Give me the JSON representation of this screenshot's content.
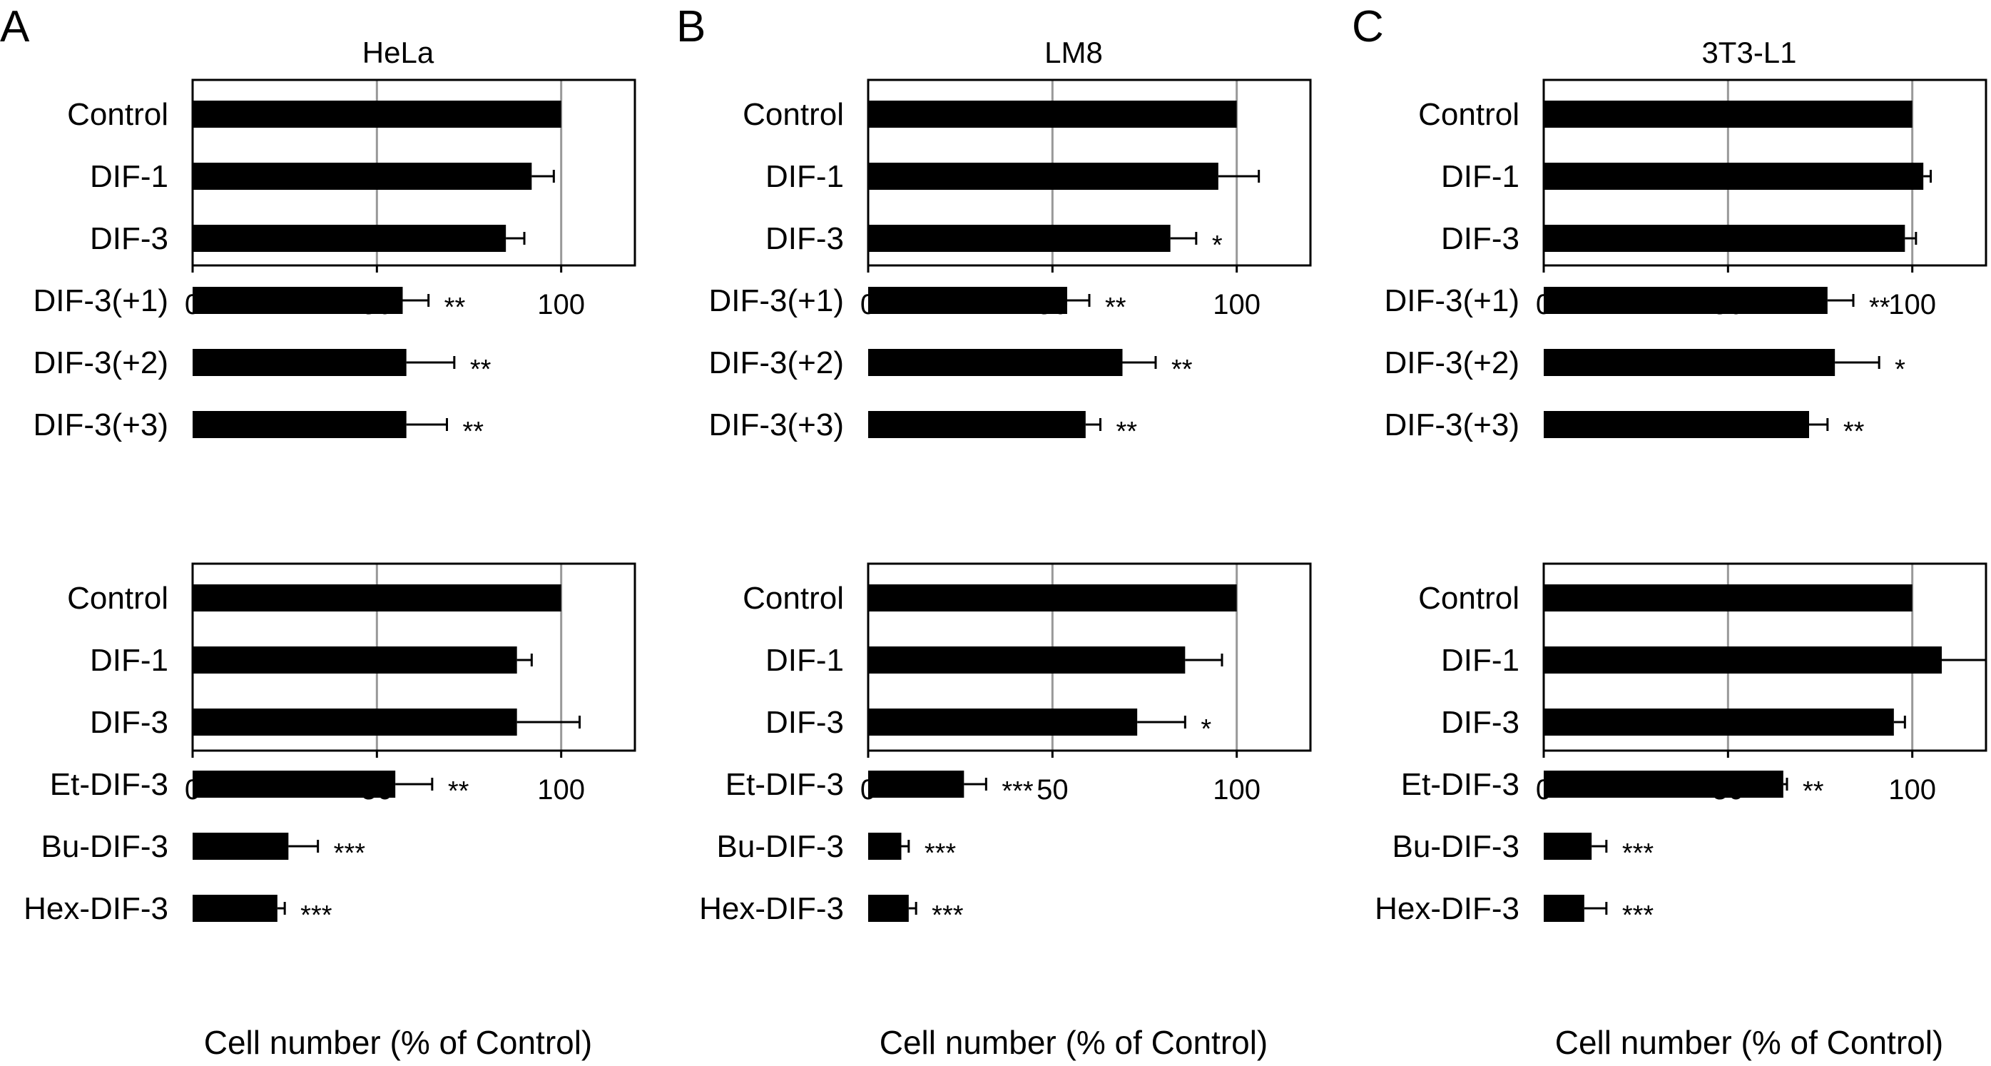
{
  "figure": {
    "panel_letters": [
      "A",
      "B",
      "C"
    ],
    "cell_lines": [
      "HeLa",
      "LM8",
      "3T3-L1"
    ],
    "xlabel": "Cell number (% of Control)"
  },
  "chart_data": [
    {
      "type": "bar",
      "orientation": "horizontal",
      "panel": "A",
      "title": "HeLa",
      "categories": [
        "Control",
        "DIF-1",
        "DIF-3",
        "DIF-3(+1)",
        "DIF-3(+2)",
        "DIF-3(+3)"
      ],
      "values": [
        100,
        92,
        85,
        57,
        58,
        58
      ],
      "errors": [
        0,
        6,
        5,
        7,
        13,
        11
      ],
      "significance": [
        "",
        "",
        "",
        "**",
        "**",
        "**"
      ],
      "xlim": [
        0,
        120
      ],
      "xticks": [
        0,
        50,
        100
      ],
      "xlabel": "",
      "grid": true
    },
    {
      "type": "bar",
      "orientation": "horizontal",
      "panel": "B",
      "title": "LM8",
      "categories": [
        "Control",
        "DIF-1",
        "DIF-3",
        "DIF-3(+1)",
        "DIF-3(+2)",
        "DIF-3(+3)"
      ],
      "values": [
        100,
        95,
        82,
        54,
        69,
        59
      ],
      "errors": [
        0,
        11,
        7,
        6,
        9,
        4
      ],
      "significance": [
        "",
        "",
        "*",
        "**",
        "**",
        "**"
      ],
      "xlim": [
        0,
        120
      ],
      "xticks": [
        0,
        50,
        100
      ],
      "xlabel": "",
      "grid": true
    },
    {
      "type": "bar",
      "orientation": "horizontal",
      "panel": "C",
      "title": "3T3-L1",
      "categories": [
        "Control",
        "DIF-1",
        "DIF-3",
        "DIF-3(+1)",
        "DIF-3(+2)",
        "DIF-3(+3)"
      ],
      "values": [
        100,
        103,
        98,
        77,
        79,
        72
      ],
      "errors": [
        0,
        2,
        3,
        7,
        12,
        5
      ],
      "significance": [
        "",
        "",
        "",
        "**",
        "*",
        "**"
      ],
      "xlim": [
        0,
        120
      ],
      "xticks": [
        0,
        50,
        100
      ],
      "xlabel": "",
      "grid": true
    },
    {
      "type": "bar",
      "orientation": "horizontal",
      "panel": "A",
      "title": "",
      "categories": [
        "Control",
        "DIF-1",
        "DIF-3",
        "Et-DIF-3",
        "Bu-DIF-3",
        "Hex-DIF-3"
      ],
      "values": [
        100,
        88,
        88,
        55,
        26,
        23
      ],
      "errors": [
        0,
        4,
        17,
        10,
        8,
        2
      ],
      "significance": [
        "",
        "",
        "",
        "**",
        "***",
        "***"
      ],
      "xlim": [
        0,
        120
      ],
      "xticks": [
        0,
        50,
        100
      ],
      "xlabel": "Cell number (% of Control)",
      "grid": true
    },
    {
      "type": "bar",
      "orientation": "horizontal",
      "panel": "B",
      "title": "",
      "categories": [
        "Control",
        "DIF-1",
        "DIF-3",
        "Et-DIF-3",
        "Bu-DIF-3",
        "Hex-DIF-3"
      ],
      "values": [
        100,
        86,
        73,
        26,
        9,
        11
      ],
      "errors": [
        0,
        10,
        13,
        6,
        2,
        2
      ],
      "significance": [
        "",
        "",
        "*",
        "***",
        "***",
        "***"
      ],
      "xlim": [
        0,
        120
      ],
      "xticks": [
        0,
        50,
        100
      ],
      "xlabel": "Cell number (% of Control)",
      "grid": true
    },
    {
      "type": "bar",
      "orientation": "horizontal",
      "panel": "C",
      "title": "",
      "categories": [
        "Control",
        "DIF-1",
        "DIF-3",
        "Et-DIF-3",
        "Bu-DIF-3",
        "Hex-DIF-3"
      ],
      "values": [
        100,
        108,
        95,
        65,
        13,
        11
      ],
      "errors": [
        0,
        12,
        3,
        1,
        4,
        6
      ],
      "significance": [
        "",
        "",
        "",
        "**",
        "***",
        "***"
      ],
      "xlim": [
        0,
        120
      ],
      "xticks": [
        0,
        50,
        100
      ],
      "xlabel": "Cell number (% of Control)",
      "grid": true
    }
  ]
}
